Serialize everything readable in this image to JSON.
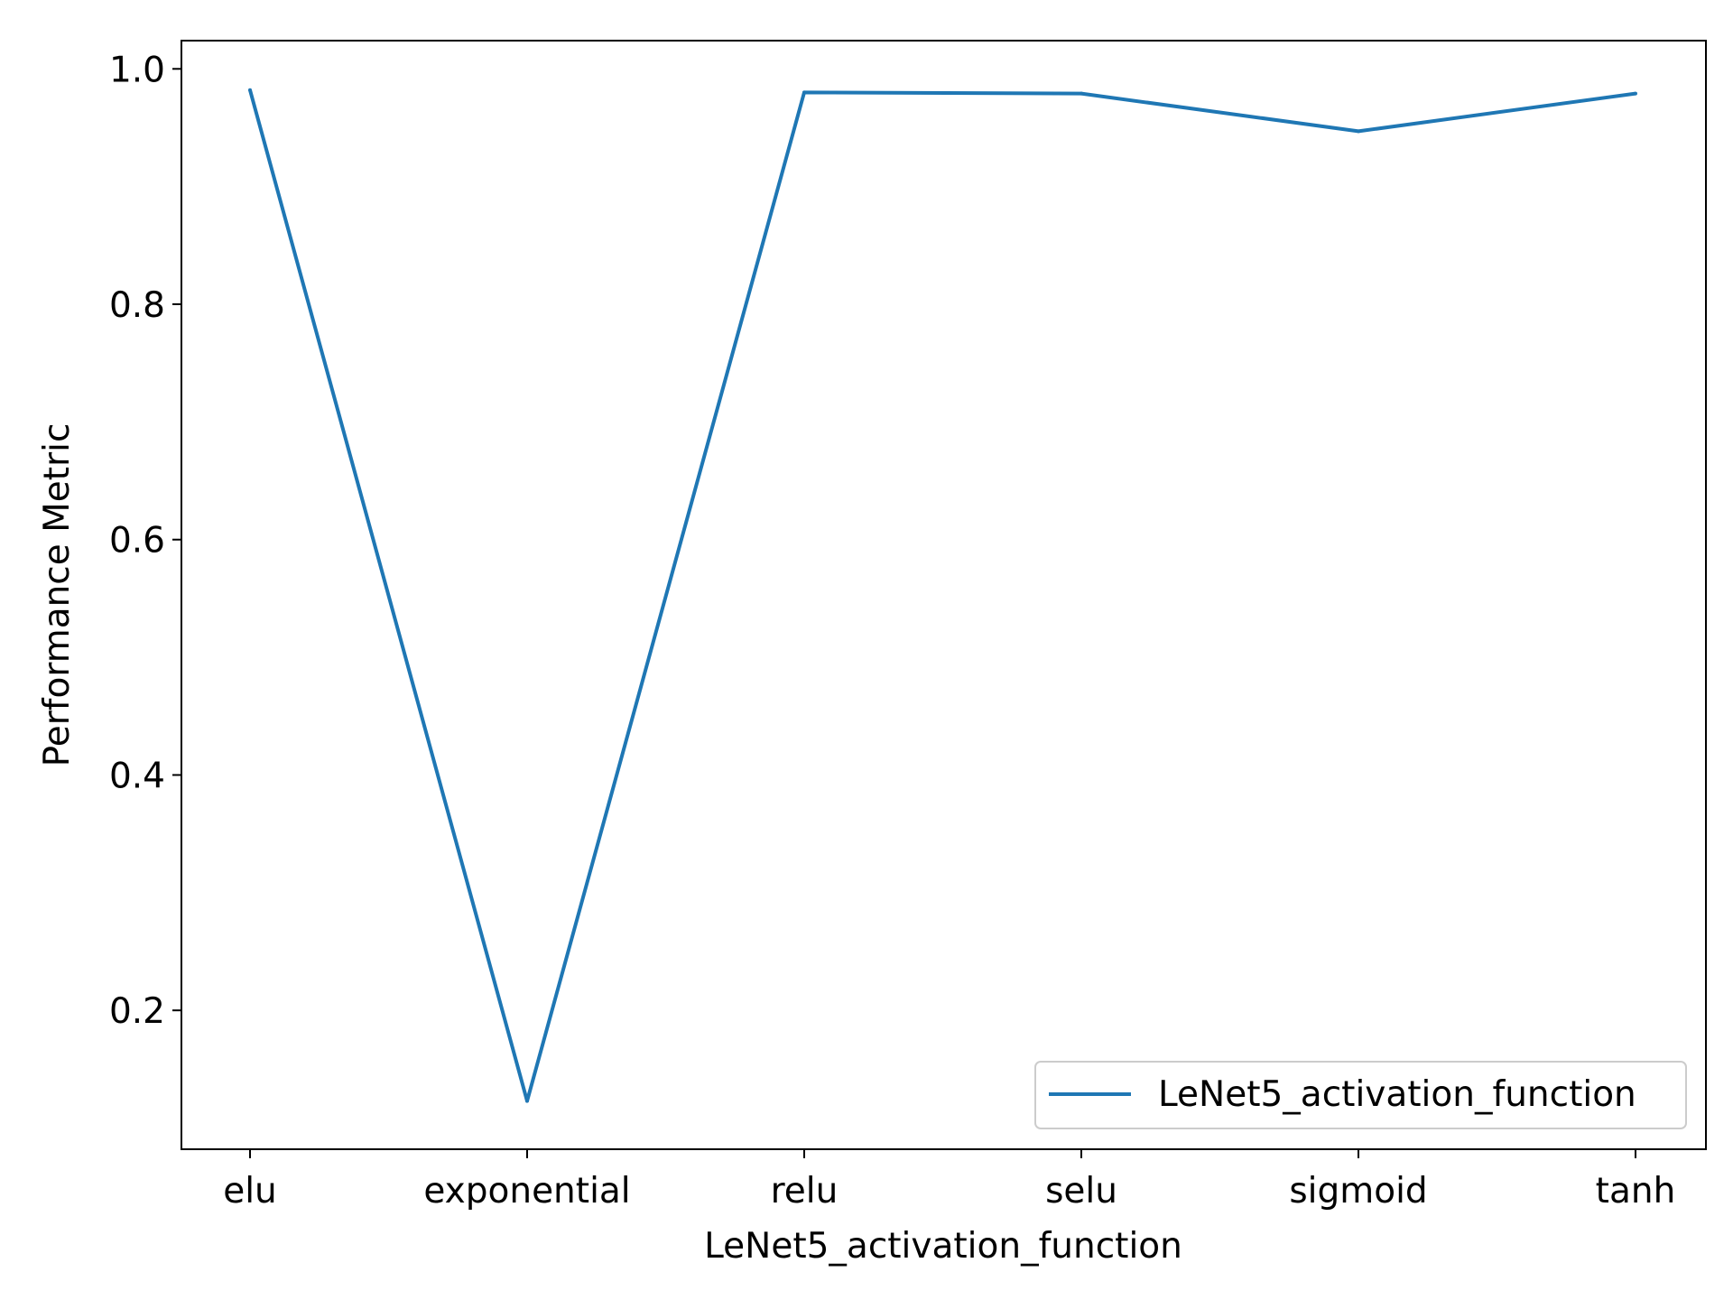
{
  "chart_data": {
    "type": "line",
    "categories": [
      "elu",
      "exponential",
      "relu",
      "selu",
      "sigmoid",
      "tanh"
    ],
    "series": [
      {
        "name": "LeNet5_activation_function",
        "values": [
          0.982,
          0.123,
          0.98,
          0.979,
          0.947,
          0.979
        ],
        "color": "#1f77b4"
      }
    ],
    "xlabel": "LeNet5_activation_function",
    "ylabel": "Performance Metric",
    "ylim": [
      0.082,
      1.024
    ],
    "yticks": [
      0.2,
      0.4,
      0.6,
      0.8,
      1.0
    ],
    "ytick_labels": [
      "0.2",
      "0.4",
      "0.6",
      "0.8",
      "1.0"
    ],
    "grid": false,
    "legend_position": "lower-right"
  }
}
